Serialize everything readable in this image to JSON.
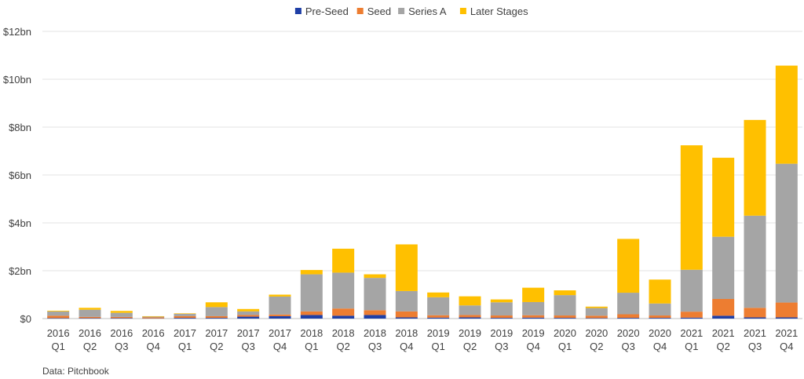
{
  "chart_data": {
    "type": "bar",
    "stacked": true,
    "title": "",
    "xlabel": "",
    "ylabel": "",
    "ylim": [
      0,
      12
    ],
    "yticks": [
      {
        "value": 0,
        "label": "$0"
      },
      {
        "value": 2,
        "label": "$2bn"
      },
      {
        "value": 4,
        "label": "$4bn"
      },
      {
        "value": 6,
        "label": "$6bn"
      },
      {
        "value": 8,
        "label": "$8bn"
      },
      {
        "value": 10,
        "label": "$10bn"
      },
      {
        "value": 12,
        "label": "$12bn"
      }
    ],
    "grid": true,
    "legend_position": "top-center",
    "categories": [
      {
        "year": "2016",
        "quarter": "Q1"
      },
      {
        "year": "2016",
        "quarter": "Q2"
      },
      {
        "year": "2016",
        "quarter": "Q3"
      },
      {
        "year": "2016",
        "quarter": "Q4"
      },
      {
        "year": "2017",
        "quarter": "Q1"
      },
      {
        "year": "2017",
        "quarter": "Q2"
      },
      {
        "year": "2017",
        "quarter": "Q3"
      },
      {
        "year": "2017",
        "quarter": "Q4"
      },
      {
        "year": "2018",
        "quarter": "Q1"
      },
      {
        "year": "2018",
        "quarter": "Q2"
      },
      {
        "year": "2018",
        "quarter": "Q3"
      },
      {
        "year": "2018",
        "quarter": "Q4"
      },
      {
        "year": "2019",
        "quarter": "Q1"
      },
      {
        "year": "2019",
        "quarter": "Q2"
      },
      {
        "year": "2019",
        "quarter": "Q3"
      },
      {
        "year": "2019",
        "quarter": "Q4"
      },
      {
        "year": "2020",
        "quarter": "Q1"
      },
      {
        "year": "2020",
        "quarter": "Q2"
      },
      {
        "year": "2020",
        "quarter": "Q3"
      },
      {
        "year": "2020",
        "quarter": "Q4"
      },
      {
        "year": "2021",
        "quarter": "Q1"
      },
      {
        "year": "2021",
        "quarter": "Q2"
      },
      {
        "year": "2021",
        "quarter": "Q3"
      },
      {
        "year": "2021",
        "quarter": "Q4"
      }
    ],
    "series": [
      {
        "name": "Pre-Seed",
        "color": "#1f3fa6",
        "values": [
          0.02,
          0.02,
          0.02,
          0.01,
          0.03,
          0.03,
          0.08,
          0.1,
          0.15,
          0.12,
          0.15,
          0.05,
          0.04,
          0.05,
          0.03,
          0.04,
          0.03,
          0.02,
          0.03,
          0.03,
          0.04,
          0.12,
          0.05,
          0.05
        ]
      },
      {
        "name": "Seed",
        "color": "#ed7d31",
        "values": [
          0.1,
          0.05,
          0.05,
          0.04,
          0.07,
          0.07,
          0.07,
          0.07,
          0.15,
          0.3,
          0.2,
          0.25,
          0.1,
          0.1,
          0.1,
          0.1,
          0.1,
          0.1,
          0.15,
          0.1,
          0.25,
          0.7,
          0.4,
          0.62
        ]
      },
      {
        "name": "Series A",
        "color": "#a5a5a5",
        "values": [
          0.18,
          0.3,
          0.17,
          0.03,
          0.1,
          0.38,
          0.15,
          0.75,
          1.55,
          1.5,
          1.35,
          0.85,
          0.75,
          0.4,
          0.55,
          0.55,
          0.85,
          0.32,
          0.9,
          0.5,
          1.75,
          2.6,
          3.85,
          5.8
        ]
      },
      {
        "name": "Later Stages",
        "color": "#ffc000",
        "values": [
          0.03,
          0.08,
          0.08,
          0.02,
          0.02,
          0.2,
          0.1,
          0.08,
          0.18,
          1.0,
          0.15,
          1.95,
          0.2,
          0.38,
          0.12,
          0.6,
          0.2,
          0.06,
          2.25,
          1.0,
          5.2,
          3.3,
          4.0,
          4.1
        ]
      }
    ]
  },
  "footer": {
    "source": "Data: Pitchbook"
  }
}
